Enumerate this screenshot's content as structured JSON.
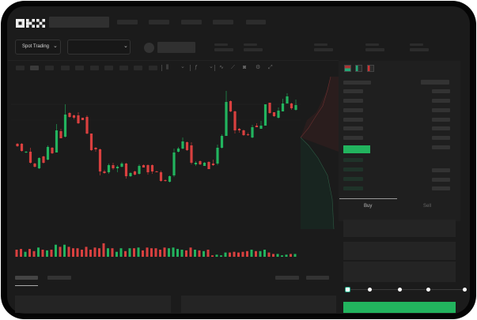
{
  "brand": {
    "logo_text": "OKX"
  },
  "header": {
    "market_selector": "Spot Trading",
    "pair_selector": "",
    "chevron": "chevron-down-icon"
  },
  "toolbar": {
    "icons": [
      "candle-type-icon",
      "chevron-down-icon",
      "indicator-icon",
      "chevron-down-icon",
      "wave-icon",
      "ruler-icon",
      "camera-icon",
      "settings-icon",
      "fullscreen-icon"
    ]
  },
  "orderbook": {
    "view_icons": [
      "book-both-icon",
      "book-bids-icon",
      "book-asks-icon"
    ]
  },
  "trade_form": {
    "tabs": [
      {
        "label": "Buy",
        "active": true
      },
      {
        "label": "Sell",
        "active": false
      }
    ],
    "leverage_slider": {
      "stops": 5,
      "value": 0
    },
    "submit_color": "#22b45e"
  },
  "colors": {
    "up": "#22b45e",
    "down": "#d9403f",
    "background": "#1b1b1b"
  },
  "chart_data": {
    "type": "candlestick",
    "candles": [
      [
        58,
        59,
        54,
        55
      ],
      [
        58,
        59,
        48,
        49
      ],
      [
        47,
        49,
        46,
        48
      ],
      [
        48,
        53,
        33,
        34
      ],
      [
        33,
        34,
        28,
        29
      ],
      [
        27,
        41,
        26,
        40
      ],
      [
        42,
        43,
        33,
        34
      ],
      [
        38,
        56,
        37,
        54
      ],
      [
        53,
        54,
        45,
        46
      ],
      [
        47,
        83,
        47,
        75
      ],
      [
        74,
        77,
        65,
        65
      ],
      [
        67,
        108,
        66,
        95
      ],
      [
        97,
        98,
        91,
        92
      ],
      [
        94,
        95,
        89,
        91
      ],
      [
        94,
        98,
        83,
        84
      ],
      [
        91,
        91,
        88,
        88
      ],
      [
        92,
        94,
        70,
        71
      ],
      [
        71,
        71,
        49,
        50
      ],
      [
        53,
        54,
        48,
        51
      ],
      [
        51,
        52,
        18,
        23
      ],
      [
        23,
        25,
        20,
        21
      ],
      [
        22,
        33,
        20,
        31
      ],
      [
        31,
        34,
        25,
        27
      ],
      [
        27,
        31,
        22,
        29
      ],
      [
        29,
        35,
        28,
        33
      ],
      [
        33,
        34,
        14,
        17
      ],
      [
        17,
        22,
        16,
        21
      ],
      [
        23,
        24,
        18,
        19
      ],
      [
        20,
        32,
        19,
        30
      ],
      [
        31,
        32,
        28,
        28
      ],
      [
        31,
        32,
        19,
        22
      ],
      [
        31,
        32,
        20,
        23
      ],
      [
        23,
        24,
        22,
        22
      ],
      [
        22,
        24,
        10,
        11
      ],
      [
        12,
        13,
        10,
        11
      ],
      [
        10,
        18,
        9,
        17
      ],
      [
        18,
        52,
        16,
        47
      ],
      [
        48,
        54,
        47,
        52
      ],
      [
        52,
        66,
        51,
        61
      ],
      [
        60,
        61,
        49,
        50
      ],
      [
        56,
        60,
        32,
        34
      ],
      [
        32,
        36,
        30,
        34
      ],
      [
        36,
        37,
        31,
        32
      ],
      [
        30,
        35,
        30,
        34
      ],
      [
        35,
        36,
        26,
        26
      ],
      [
        33,
        38,
        30,
        31
      ],
      [
        33,
        57,
        31,
        53
      ],
      [
        53,
        70,
        52,
        68
      ],
      [
        68,
        125,
        68,
        111
      ],
      [
        112,
        113,
        98,
        99
      ],
      [
        99,
        100,
        71,
        75
      ],
      [
        77,
        78,
        72,
        75
      ],
      [
        75,
        76,
        68,
        69
      ],
      [
        70,
        72,
        68,
        69
      ],
      [
        66,
        82,
        65,
        79
      ],
      [
        81,
        84,
        79,
        79
      ],
      [
        77,
        87,
        77,
        81
      ],
      [
        81,
        108,
        81,
        108
      ],
      [
        110,
        110,
        96,
        97
      ],
      [
        98,
        98,
        92,
        93
      ],
      [
        91,
        104,
        90,
        100
      ],
      [
        99,
        115,
        99,
        109
      ],
      [
        109,
        122,
        109,
        118
      ],
      [
        109,
        110,
        101,
        103
      ],
      [
        101,
        114,
        100,
        107
      ]
    ],
    "volumes": [
      10,
      11,
      7,
      11,
      8,
      13,
      10,
      9,
      10,
      17,
      14,
      17,
      14,
      12,
      12,
      10,
      14,
      10,
      13,
      12,
      19,
      12,
      12,
      7,
      12,
      8,
      12,
      12,
      13,
      9,
      13,
      12,
      12,
      10,
      13,
      12,
      13,
      11,
      10,
      9,
      13,
      10,
      9,
      8,
      10,
      2,
      3,
      2,
      6,
      6,
      7,
      6,
      7,
      8,
      10,
      8,
      8,
      10,
      6,
      4,
      4,
      2,
      3,
      4,
      4
    ],
    "xlabel": "",
    "ylabel": "",
    "grid": true
  }
}
